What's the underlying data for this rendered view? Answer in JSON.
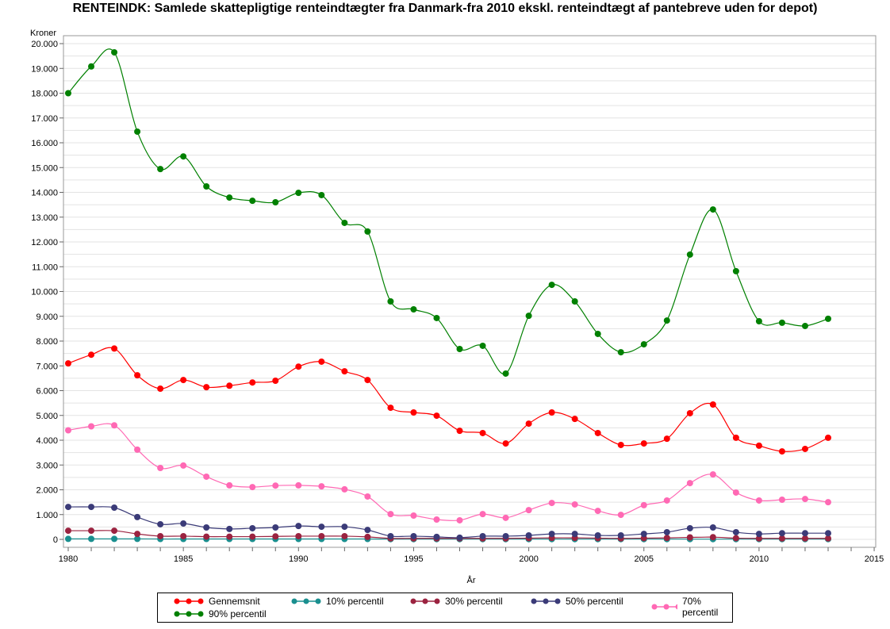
{
  "chart_data": {
    "type": "line",
    "title": "RENTEINDK:  Samlede skattepligtige renteindtægter fra Danmark-fra 2010 ekskl. renteindtægt af pantebreve uden for depot)",
    "xlabel": "År",
    "ylabel": "Kroner",
    "xlim": [
      1979.8,
      2015.1
    ],
    "ylim": [
      0,
      20500
    ],
    "xticks": [
      1980,
      1985,
      1990,
      1995,
      2000,
      2005,
      2010,
      2015
    ],
    "xtick_labels": [
      "1980",
      "1985",
      "1990",
      "1995",
      "2000",
      "2005",
      "2010",
      "2015"
    ],
    "yticks": [
      0,
      1000,
      2000,
      3000,
      4000,
      5000,
      6000,
      7000,
      8000,
      9000,
      10000,
      11000,
      12000,
      13000,
      14000,
      15000,
      16000,
      17000,
      18000,
      19000,
      20000
    ],
    "ytick_labels": [
      "0",
      "1.000",
      "2.000",
      "3.000",
      "4.000",
      "5.000",
      "6.000",
      "7.000",
      "8.000",
      "9.000",
      "10.000",
      "11.000",
      "12.000",
      "13.000",
      "14.000",
      "15.000",
      "16.000",
      "17.000",
      "18.000",
      "19.000",
      "20.000"
    ],
    "grid": true,
    "legend_position": "bottom",
    "x": [
      1980,
      1981,
      1982,
      1983,
      1984,
      1985,
      1986,
      1987,
      1988,
      1989,
      1990,
      1991,
      1992,
      1993,
      1994,
      1995,
      1996,
      1997,
      1998,
      1999,
      2000,
      2001,
      2002,
      2003,
      2004,
      2005,
      2006,
      2007,
      2008,
      2009,
      2010,
      2011,
      2012,
      2013
    ],
    "series": [
      {
        "name": "Gennemsnit",
        "color": "#ff0000",
        "values": [
          7100,
          7450,
          7700,
          6620,
          6080,
          6430,
          6140,
          6200,
          6330,
          6400,
          6970,
          7170,
          6780,
          6430,
          5310,
          5120,
          4990,
          4380,
          4290,
          3870,
          4670,
          5120,
          4860,
          4290,
          3810,
          3870,
          4060,
          5090,
          5440,
          4100,
          3780,
          3550,
          3650,
          4100
        ]
      },
      {
        "name": "10% percentil",
        "color": "#1a8f8f",
        "values": [
          20,
          20,
          20,
          20,
          15,
          15,
          15,
          15,
          15,
          15,
          15,
          15,
          15,
          15,
          10,
          10,
          10,
          10,
          10,
          10,
          10,
          10,
          10,
          10,
          10,
          10,
          10,
          10,
          10,
          10,
          10,
          10,
          10,
          10
        ]
      },
      {
        "name": "30% percentil",
        "color": "#9b2340",
        "values": [
          350,
          350,
          350,
          220,
          130,
          130,
          110,
          110,
          110,
          120,
          130,
          130,
          130,
          100,
          40,
          40,
          40,
          40,
          40,
          40,
          50,
          60,
          60,
          50,
          40,
          50,
          60,
          80,
          90,
          50,
          40,
          40,
          40,
          40
        ]
      },
      {
        "name": "50% percentil",
        "color": "#3b3b78",
        "values": [
          1310,
          1310,
          1280,
          900,
          610,
          640,
          480,
          420,
          450,
          480,
          540,
          510,
          510,
          380,
          130,
          130,
          100,
          70,
          130,
          130,
          160,
          220,
          220,
          160,
          160,
          220,
          290,
          450,
          480,
          290,
          220,
          250,
          250,
          250
        ]
      },
      {
        "name": "70% percentil",
        "color": "#ff69b4",
        "values": [
          4400,
          4560,
          4600,
          3620,
          2880,
          2980,
          2530,
          2180,
          2110,
          2170,
          2180,
          2140,
          2020,
          1730,
          1020,
          960,
          800,
          770,
          1020,
          870,
          1180,
          1470,
          1410,
          1150,
          990,
          1380,
          1570,
          2270,
          2620,
          1890,
          1570,
          1600,
          1630,
          1500
        ]
      },
      {
        "name": "90% percentil",
        "color": "#008000",
        "values": [
          18000,
          19080,
          19650,
          16450,
          14940,
          15450,
          14240,
          13790,
          13660,
          13600,
          13980,
          13890,
          12770,
          12420,
          9600,
          9280,
          8930,
          7680,
          7810,
          6690,
          9020,
          10270,
          9600,
          8290,
          7550,
          7870,
          8830,
          11490,
          13310,
          10820,
          8800,
          8740,
          8610,
          8900
        ]
      }
    ]
  }
}
